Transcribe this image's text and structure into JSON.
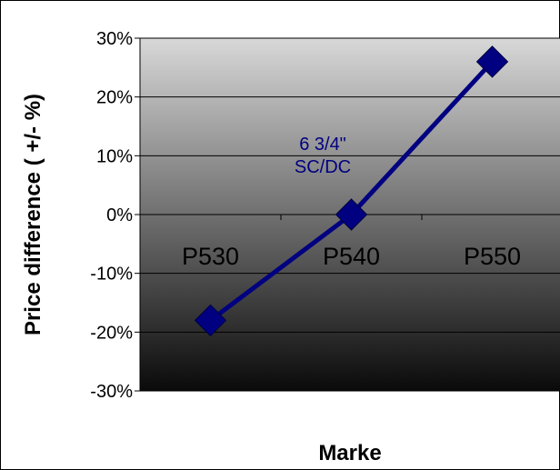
{
  "chart_data": {
    "type": "line",
    "categories": [
      "P530",
      "P540",
      "P550"
    ],
    "series": [
      {
        "values": [
          -18,
          0,
          26
        ]
      }
    ],
    "xlabel": "Marke",
    "ylabel": "Price difference ( +/- %)",
    "ylim": [
      -30,
      30
    ],
    "yticks": [
      -30,
      -20,
      -10,
      0,
      10,
      20,
      30
    ],
    "ytick_labels": [
      "-30%",
      "-20%",
      "-10%",
      "0%",
      "10%",
      "20%",
      "30%"
    ],
    "annotation": [
      "6 3/4\"",
      "SC/DC"
    ],
    "grid": true,
    "legend": "none",
    "colors": {
      "series_line": "#000080",
      "marker": "#000080",
      "annotation_text": "#000080",
      "plot_gradient_top": "#d8d8d8",
      "plot_gradient_bottom": "#0a0a0a"
    }
  }
}
